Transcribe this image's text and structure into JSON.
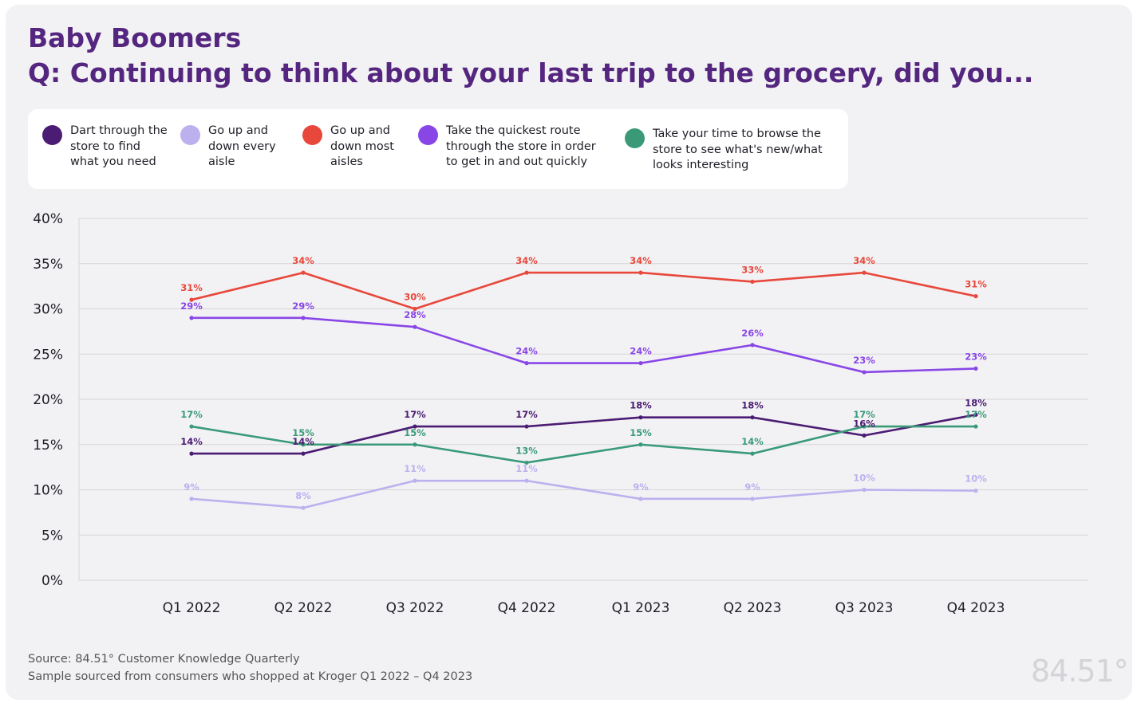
{
  "header": {
    "title_line1": "Baby Boomers",
    "title_line2": "Q: Continuing to think about your last trip to the grocery, did you..."
  },
  "footer": {
    "source_line1": "Source: 84.51° Customer Knowledge Quarterly",
    "source_line2": "Sample sourced from consumers who shopped at Kroger Q1 2022 – Q4 2023",
    "logo_text": "84.51°"
  },
  "colors": {
    "dart": "#4b1c73",
    "every_aisle": "#bdb0ee",
    "most_aisles": "#e8473b",
    "quickest": "#8846e6",
    "browse": "#3a9a78"
  },
  "chart_data": {
    "type": "line",
    "title": "Baby Boomers",
    "subtitle": "Q: Continuing to think about your last trip to the grocery, did you...",
    "xlabel": "",
    "ylabel": "",
    "categories": [
      "Q1 2022",
      "Q2 2022",
      "Q3 2022",
      "Q4 2022",
      "Q1 2023",
      "Q2 2023",
      "Q3 2023",
      "Q4 2023"
    ],
    "yticks": [
      "0%",
      "5%",
      "10%",
      "15%",
      "20%",
      "25%",
      "30%",
      "35%",
      "40%"
    ],
    "ylim": [
      0,
      40
    ],
    "grid": true,
    "legend_position": "top",
    "series": [
      {
        "key": "most_aisles",
        "name": "Go up and down most aisles",
        "values": [
          31,
          34,
          30,
          34,
          34,
          33,
          34,
          31.4
        ],
        "labels": [
          "31%",
          "34%",
          "30%",
          "34%",
          "34%",
          "33%",
          "34%",
          "31%"
        ]
      },
      {
        "key": "quickest",
        "name": "Take the quickest route through the store in order to get in and out quickly",
        "values": [
          29,
          29,
          28,
          24,
          24,
          26,
          23,
          23.4
        ],
        "labels": [
          "29%",
          "29%",
          "28%",
          "24%",
          "24%",
          "26%",
          "23%",
          "23%"
        ]
      },
      {
        "key": "dart",
        "name": "Dart through the store to find what you need",
        "values": [
          14,
          14,
          17,
          17,
          18,
          18,
          16,
          18.3
        ],
        "labels": [
          "14%",
          "14%",
          "17%",
          "17%",
          "18%",
          "18%",
          "16%",
          "18%"
        ]
      },
      {
        "key": "browse",
        "name": "Take your time to browse the store to see what's new/what looks interesting",
        "values": [
          17,
          15,
          15,
          13,
          15,
          14,
          17,
          17
        ],
        "labels": [
          "17%",
          "15%",
          "15%",
          "13%",
          "15%",
          "14%",
          "17%",
          "17%"
        ]
      },
      {
        "key": "every_aisle",
        "name": "Go up and down every aisle",
        "values": [
          9,
          8,
          11,
          11,
          9,
          9,
          10,
          9.9
        ],
        "labels": [
          "9%",
          "8%",
          "11%",
          "11%",
          "9%",
          "9%",
          "10%",
          "10%"
        ]
      }
    ],
    "legend": [
      {
        "key": "dart",
        "label": "Dart through the store to find what you need"
      },
      {
        "key": "every_aisle",
        "label": "Go up and down every aisle"
      },
      {
        "key": "most_aisles",
        "label": "Go up and down most aisles"
      },
      {
        "key": "quickest",
        "label": "Take the quickest route through the store in order to get in and out quickly"
      },
      {
        "key": "browse",
        "label": "Take your time to browse the store to see what's new/what looks interesting"
      }
    ]
  }
}
